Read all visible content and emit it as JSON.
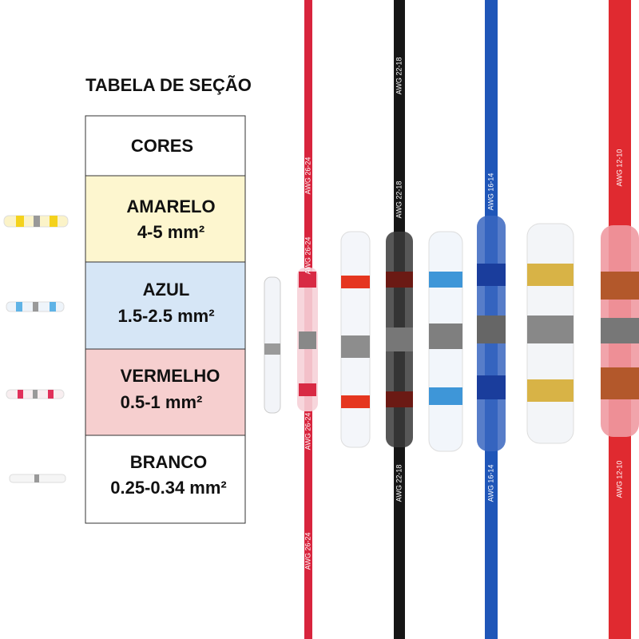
{
  "header": {
    "title": "TABELA DE SEÇÃO"
  },
  "table": {
    "header": "CORES",
    "rows": [
      {
        "name": "AMARELO",
        "size": "4-5 mm²"
      },
      {
        "name": "AZUL",
        "size": "1.5-2.5 mm²"
      },
      {
        "name": "VERMELHO",
        "size": "0.5-1 mm²"
      },
      {
        "name": "BRANCO",
        "size": "0.25-0.34 mm²"
      }
    ]
  },
  "wires": [
    {
      "label": "AWG 26-24"
    },
    {
      "label": "AWG 22-18"
    },
    {
      "label": "AWG 16-14"
    },
    {
      "label": "AWG 12-10"
    }
  ]
}
